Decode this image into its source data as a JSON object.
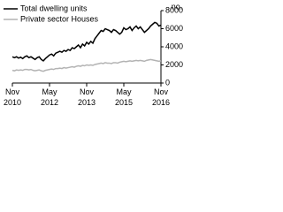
{
  "chart_data": {
    "type": "line",
    "y_label": "no.",
    "x": [
      "2010-11",
      "2010-12",
      "2011-01",
      "2011-02",
      "2011-03",
      "2011-04",
      "2011-05",
      "2011-06",
      "2011-07",
      "2011-08",
      "2011-09",
      "2011-10",
      "2011-11",
      "2011-12",
      "2012-01",
      "2012-02",
      "2012-03",
      "2012-04",
      "2012-05",
      "2012-06",
      "2012-07",
      "2012-08",
      "2012-09",
      "2012-10",
      "2012-11",
      "2012-12",
      "2013-01",
      "2013-02",
      "2013-03",
      "2013-04",
      "2013-05",
      "2013-06",
      "2013-07",
      "2013-08",
      "2013-09",
      "2013-10",
      "2013-11",
      "2013-12",
      "2014-01",
      "2014-02",
      "2014-03",
      "2014-04",
      "2014-05",
      "2014-06",
      "2014-07",
      "2014-08",
      "2014-09",
      "2014-10",
      "2014-11",
      "2014-12",
      "2015-01",
      "2015-02",
      "2015-03",
      "2015-04",
      "2015-05",
      "2015-06",
      "2015-07",
      "2015-08",
      "2015-09",
      "2015-10",
      "2015-11",
      "2015-12",
      "2016-01",
      "2016-02",
      "2016-03",
      "2016-04",
      "2016-05",
      "2016-06",
      "2016-07",
      "2016-08",
      "2016-09",
      "2016-10",
      "2016-11"
    ],
    "series": [
      {
        "name": "Total dwelling units",
        "color": "#000000",
        "values": [
          2900,
          2800,
          2900,
          2750,
          2850,
          2700,
          2900,
          3000,
          2800,
          2900,
          2750,
          2600,
          2800,
          2900,
          2600,
          2450,
          2700,
          2900,
          3100,
          3200,
          3000,
          3300,
          3400,
          3500,
          3400,
          3600,
          3500,
          3700,
          3600,
          3900,
          3800,
          4000,
          4200,
          3900,
          4300,
          4100,
          4500,
          4300,
          4600,
          4400,
          4900,
          5200,
          5500,
          5800,
          5700,
          6000,
          5900,
          5800,
          5600,
          5900,
          5800,
          5600,
          5400,
          5600,
          6100,
          5900,
          6000,
          6200,
          5800,
          6100,
          6300,
          6000,
          6200,
          5900,
          5600,
          5800,
          6000,
          6300,
          6500,
          6700,
          6600,
          6300,
          6400
        ]
      },
      {
        "name": "Private sector Houses",
        "color": "#b3b3b3",
        "values": [
          1400,
          1350,
          1450,
          1400,
          1450,
          1400,
          1500,
          1500,
          1450,
          1500,
          1400,
          1350,
          1400,
          1450,
          1350,
          1300,
          1400,
          1450,
          1500,
          1550,
          1500,
          1600,
          1600,
          1650,
          1600,
          1700,
          1650,
          1700,
          1750,
          1800,
          1750,
          1850,
          1900,
          1850,
          1950,
          1900,
          2000,
          1950,
          2000,
          1950,
          2050,
          2100,
          2150,
          2200,
          2150,
          2250,
          2200,
          2200,
          2150,
          2250,
          2250,
          2200,
          2300,
          2350,
          2400,
          2350,
          2400,
          2450,
          2400,
          2450,
          2500,
          2450,
          2500,
          2450,
          2400,
          2500,
          2550,
          2600,
          2550,
          2500,
          2450,
          2400,
          2450
        ]
      }
    ],
    "xticks": [
      {
        "value": "2010-11",
        "label": "Nov\n2010"
      },
      {
        "value": "2012-05",
        "label": "May\n2012"
      },
      {
        "value": "2013-11",
        "label": "Nov\n2013"
      },
      {
        "value": "2015-05",
        "label": "May\n2015"
      },
      {
        "value": "2016-11",
        "label": "Nov\n2016"
      }
    ],
    "ylim": [
      0,
      8000
    ],
    "yticks": [
      0,
      2000,
      4000,
      6000,
      8000
    ]
  }
}
